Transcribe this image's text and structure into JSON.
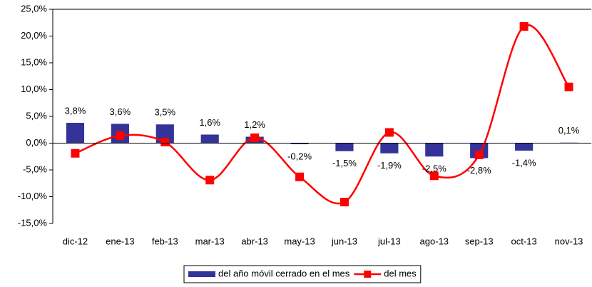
{
  "chart_data": {
    "type": "combo",
    "categories": [
      "dic-12",
      "ene-13",
      "feb-13",
      "mar-13",
      "abr-13",
      "may-13",
      "jun-13",
      "jul-13",
      "ago-13",
      "sep-13",
      "oct-13",
      "nov-13"
    ],
    "series": [
      {
        "name": "del año móvil cerrado en el mes",
        "type": "bar",
        "color": "#333399",
        "values": [
          3.8,
          3.6,
          3.5,
          1.6,
          1.2,
          -0.2,
          -1.5,
          -1.9,
          -2.5,
          -2.8,
          -1.4,
          0.1
        ],
        "value_labels": [
          "3,8%",
          "3,6%",
          "3,5%",
          "1,6%",
          "1,2%",
          "-0,2%",
          "-1,5%",
          "-1,9%",
          "-2,5%",
          "-2,8%",
          "-1,4%",
          "0,1%"
        ]
      },
      {
        "name": "del mes",
        "type": "line",
        "color": "#ff0000",
        "values": [
          -1.9,
          1.4,
          0.2,
          -6.9,
          1.0,
          -6.3,
          -11.0,
          2.0,
          -6.1,
          -2.2,
          21.8,
          10.5
        ]
      }
    ],
    "ylim": [
      -15,
      25
    ],
    "yticks": [
      {
        "value": -15,
        "label": "-15,0%"
      },
      {
        "value": -10,
        "label": "-10,0%"
      },
      {
        "value": -5,
        "label": "-5,0%"
      },
      {
        "value": 0,
        "label": "0,0%"
      },
      {
        "value": 5,
        "label": "5,0%"
      },
      {
        "value": 10,
        "label": "10,0%"
      },
      {
        "value": 15,
        "label": "15,0%"
      },
      {
        "value": 20,
        "label": "20,0%"
      },
      {
        "value": 25,
        "label": "25,0%"
      }
    ],
    "grid": false,
    "legend": "bottom"
  }
}
